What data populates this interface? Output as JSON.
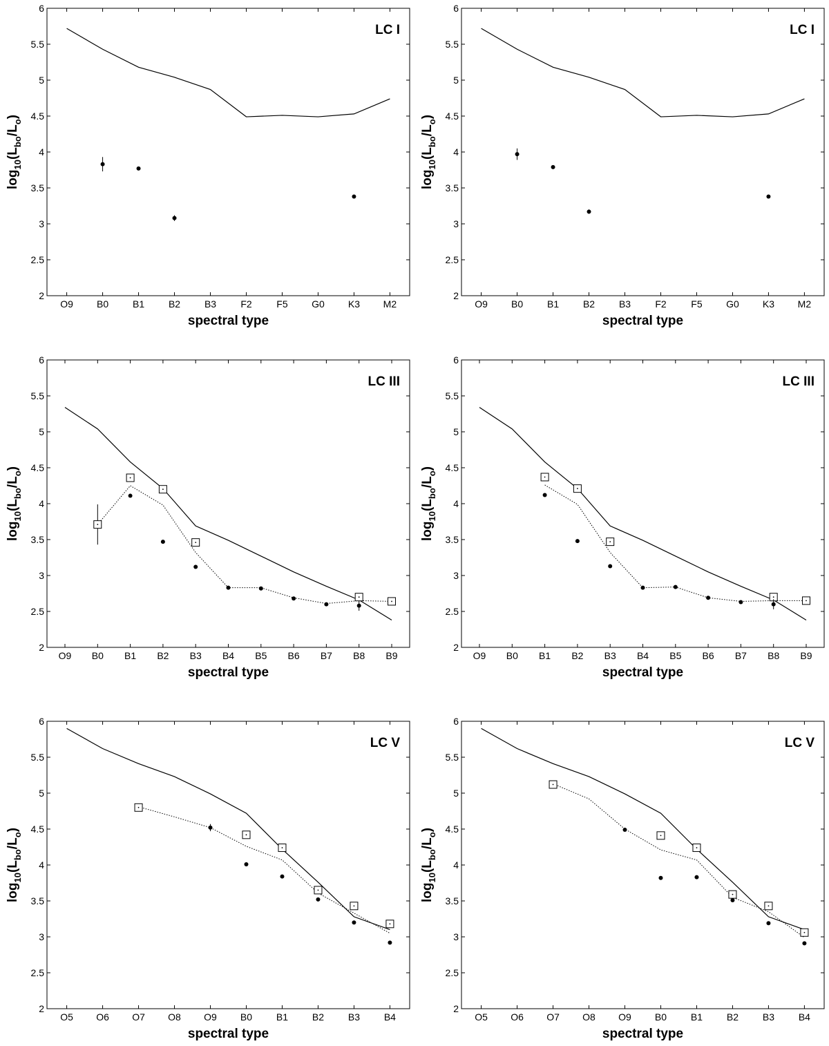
{
  "chart_data": [
    {
      "type": "line",
      "label": "LC I",
      "xlabel": "spectral type",
      "ylabel": {
        "base": "log",
        "sub1": "10",
        "open": "(L",
        "sub2": "bo",
        "mid": "/L",
        "sub3": "o",
        "close": ")"
      },
      "ylim": [
        2,
        6
      ],
      "yticks": [
        "2",
        "2.5",
        "3",
        "3.5",
        "4",
        "4.5",
        "5",
        "5.5",
        "6"
      ],
      "categories": [
        "O9",
        "B0",
        "B1",
        "B2",
        "B3",
        "F2",
        "F5",
        "G0",
        "K3",
        "M2"
      ],
      "solid_line": [
        5.72,
        5.43,
        5.18,
        5.04,
        4.87,
        4.49,
        4.51,
        4.49,
        4.53,
        4.74
      ],
      "squares": [],
      "dotted_line": [],
      "dots": [
        {
          "x": 1,
          "y": 3.83,
          "err": 0.1
        },
        {
          "x": 2,
          "y": 3.77
        },
        {
          "x": 3,
          "y": 3.08,
          "err": 0.04
        },
        {
          "x": 8,
          "y": 3.38
        }
      ]
    },
    {
      "type": "line",
      "label": "LC I",
      "xlabel": "spectral type",
      "ylabel": {
        "base": "log",
        "sub1": "10",
        "open": "(L",
        "sub2": "bo",
        "mid": "/L",
        "sub3": "o",
        "close": ")"
      },
      "ylim": [
        2,
        6
      ],
      "yticks": [
        "2",
        "2.5",
        "3",
        "3.5",
        "4",
        "4.5",
        "5",
        "5.5",
        "6"
      ],
      "categories": [
        "O9",
        "B0",
        "B1",
        "B2",
        "B3",
        "F2",
        "F5",
        "G0",
        "K3",
        "M2"
      ],
      "solid_line": [
        5.72,
        5.43,
        5.18,
        5.04,
        4.87,
        4.49,
        4.51,
        4.49,
        4.53,
        4.74
      ],
      "squares": [],
      "dotted_line": [],
      "dots": [
        {
          "x": 1,
          "y": 3.97,
          "err": 0.08
        },
        {
          "x": 2,
          "y": 3.79
        },
        {
          "x": 3,
          "y": 3.17,
          "err": 0.03
        },
        {
          "x": 8,
          "y": 3.38
        }
      ]
    },
    {
      "type": "line",
      "label": "LC III",
      "xlabel": "spectral type",
      "ylabel": {
        "base": "log",
        "sub1": "10",
        "open": "(L",
        "sub2": "bo",
        "mid": "/L",
        "sub3": "o",
        "close": ")"
      },
      "ylim": [
        2,
        6
      ],
      "yticks": [
        "2",
        "2.5",
        "3",
        "3.5",
        "4",
        "4.5",
        "5",
        "5.5",
        "6"
      ],
      "categories": [
        "O9",
        "B0",
        "B1",
        "B2",
        "B3",
        "B4",
        "B5",
        "B6",
        "B7",
        "B8",
        "B9"
      ],
      "solid_line": [
        5.34,
        5.04,
        4.58,
        4.21,
        3.69,
        3.49,
        3.27,
        3.05,
        2.85,
        2.66,
        2.38
      ],
      "squares": [
        {
          "x": 1,
          "y": 3.71,
          "err": 0.28
        },
        {
          "x": 2,
          "y": 4.36
        },
        {
          "x": 3,
          "y": 4.2
        },
        {
          "x": 4,
          "y": 3.46
        },
        {
          "x": 9,
          "y": 2.7
        },
        {
          "x": 10,
          "y": 2.64
        }
      ],
      "dotted_line": [
        {
          "x": 1,
          "y": 3.71
        },
        {
          "x": 2,
          "y": 4.25
        },
        {
          "x": 3,
          "y": 3.98
        },
        {
          "x": 4,
          "y": 3.32
        },
        {
          "x": 5,
          "y": 2.83
        },
        {
          "x": 6,
          "y": 2.83
        },
        {
          "x": 7,
          "y": 2.69
        },
        {
          "x": 8,
          "y": 2.61
        },
        {
          "x": 9,
          "y": 2.65
        },
        {
          "x": 10,
          "y": 2.64
        }
      ],
      "dots": [
        {
          "x": 2,
          "y": 4.11
        },
        {
          "x": 3,
          "y": 3.47
        },
        {
          "x": 4,
          "y": 3.12
        },
        {
          "x": 5,
          "y": 2.83
        },
        {
          "x": 6,
          "y": 2.82
        },
        {
          "x": 7,
          "y": 2.68
        },
        {
          "x": 8,
          "y": 2.6
        },
        {
          "x": 9,
          "y": 2.58,
          "err": 0.07
        }
      ]
    },
    {
      "type": "line",
      "label": "LC III",
      "xlabel": "spectral type",
      "ylabel": {
        "base": "log",
        "sub1": "10",
        "open": "(L",
        "sub2": "bo",
        "mid": "/L",
        "sub3": "o",
        "close": ")"
      },
      "ylim": [
        2,
        6
      ],
      "yticks": [
        "2",
        "2.5",
        "3",
        "3.5",
        "4",
        "4.5",
        "5",
        "5.5",
        "6"
      ],
      "categories": [
        "O9",
        "B0",
        "B1",
        "B2",
        "B3",
        "B4",
        "B5",
        "B6",
        "B7",
        "B8",
        "B9"
      ],
      "solid_line": [
        5.34,
        5.04,
        4.58,
        4.21,
        3.69,
        3.49,
        3.27,
        3.05,
        2.85,
        2.66,
        2.38
      ],
      "squares": [
        {
          "x": 2,
          "y": 4.37
        },
        {
          "x": 3,
          "y": 4.21
        },
        {
          "x": 4,
          "y": 3.47
        },
        {
          "x": 9,
          "y": 2.7
        },
        {
          "x": 10,
          "y": 2.65
        }
      ],
      "dotted_line": [
        {
          "x": 2,
          "y": 4.26
        },
        {
          "x": 3,
          "y": 3.99
        },
        {
          "x": 4,
          "y": 3.32
        },
        {
          "x": 5,
          "y": 2.83
        },
        {
          "x": 6,
          "y": 2.84
        },
        {
          "x": 7,
          "y": 2.69
        },
        {
          "x": 8,
          "y": 2.64
        },
        {
          "x": 9,
          "y": 2.65
        },
        {
          "x": 10,
          "y": 2.65
        }
      ],
      "dots": [
        {
          "x": 2,
          "y": 4.12
        },
        {
          "x": 3,
          "y": 3.48
        },
        {
          "x": 4,
          "y": 3.13
        },
        {
          "x": 5,
          "y": 2.83
        },
        {
          "x": 6,
          "y": 2.84
        },
        {
          "x": 7,
          "y": 2.69
        },
        {
          "x": 8,
          "y": 2.63
        },
        {
          "x": 9,
          "y": 2.6,
          "err": 0.07
        }
      ]
    },
    {
      "type": "line",
      "label": "LC V",
      "xlabel": "spectral type",
      "ylabel": {
        "base": "log",
        "sub1": "10",
        "open": "(L",
        "sub2": "bo",
        "mid": "/L",
        "sub3": "o",
        "close": ")"
      },
      "ylim": [
        2,
        6
      ],
      "yticks": [
        "2",
        "2.5",
        "3",
        "3.5",
        "4",
        "4.5",
        "5",
        "5.5",
        "6"
      ],
      "categories": [
        "O5",
        "O6",
        "O7",
        "O8",
        "O9",
        "B0",
        "B1",
        "B2",
        "B3",
        "B4"
      ],
      "solid_line": [
        5.9,
        5.62,
        5.41,
        5.23,
        4.99,
        4.72,
        4.22,
        3.76,
        3.28,
        3.1
      ],
      "squares": [
        {
          "x": 2,
          "y": 4.8
        },
        {
          "x": 5,
          "y": 4.42
        },
        {
          "x": 6,
          "y": 4.24
        },
        {
          "x": 7,
          "y": 3.65
        },
        {
          "x": 8,
          "y": 3.43
        },
        {
          "x": 9,
          "y": 3.18
        }
      ],
      "dotted_line": [
        {
          "x": 2,
          "y": 4.81
        },
        {
          "x": 3,
          "y": 4.67
        },
        {
          "x": 4,
          "y": 4.52
        },
        {
          "x": 5,
          "y": 4.26
        },
        {
          "x": 6,
          "y": 4.07
        },
        {
          "x": 7,
          "y": 3.61
        },
        {
          "x": 8,
          "y": 3.33
        },
        {
          "x": 9,
          "y": 3.05
        }
      ],
      "dots": [
        {
          "x": 4,
          "y": 4.52,
          "err": 0.05
        },
        {
          "x": 5,
          "y": 4.01
        },
        {
          "x": 6,
          "y": 3.84
        },
        {
          "x": 7,
          "y": 3.52
        },
        {
          "x": 8,
          "y": 3.2
        },
        {
          "x": 9,
          "y": 2.92
        }
      ]
    },
    {
      "type": "line",
      "label": "LC V",
      "xlabel": "spectral type",
      "ylabel": {
        "base": "log",
        "sub1": "10",
        "open": "(L",
        "sub2": "bo",
        "mid": "/L",
        "sub3": "o",
        "close": ")"
      },
      "ylim": [
        2,
        6
      ],
      "yticks": [
        "2",
        "2.5",
        "3",
        "3.5",
        "4",
        "4.5",
        "5",
        "5.5",
        "6"
      ],
      "categories": [
        "O5",
        "O6",
        "O7",
        "O8",
        "O9",
        "B0",
        "B1",
        "B2",
        "B3",
        "B4"
      ],
      "solid_line": [
        5.9,
        5.62,
        5.41,
        5.23,
        4.99,
        4.72,
        4.22,
        3.76,
        3.28,
        3.1
      ],
      "squares": [
        {
          "x": 2,
          "y": 5.12
        },
        {
          "x": 5,
          "y": 4.41
        },
        {
          "x": 6,
          "y": 4.24
        },
        {
          "x": 7,
          "y": 3.59
        },
        {
          "x": 8,
          "y": 3.43
        },
        {
          "x": 9,
          "y": 3.06
        }
      ],
      "dotted_line": [
        {
          "x": 2,
          "y": 5.13
        },
        {
          "x": 3,
          "y": 4.92
        },
        {
          "x": 4,
          "y": 4.5
        },
        {
          "x": 5,
          "y": 4.21
        },
        {
          "x": 6,
          "y": 4.07
        },
        {
          "x": 7,
          "y": 3.55
        },
        {
          "x": 8,
          "y": 3.35
        },
        {
          "x": 9,
          "y": 2.99
        }
      ],
      "dots": [
        {
          "x": 4,
          "y": 4.49
        },
        {
          "x": 5,
          "y": 3.82
        },
        {
          "x": 6,
          "y": 3.83
        },
        {
          "x": 7,
          "y": 3.51
        },
        {
          "x": 8,
          "y": 3.19
        },
        {
          "x": 9,
          "y": 2.91
        }
      ]
    }
  ]
}
